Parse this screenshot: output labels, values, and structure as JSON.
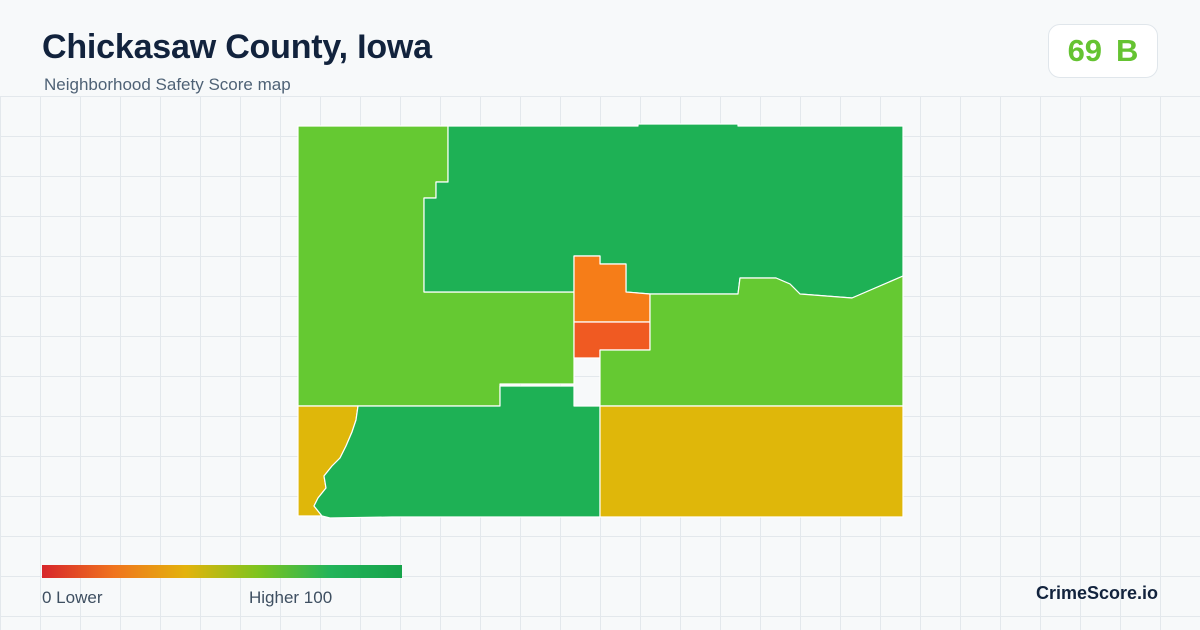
{
  "header": {
    "title": "Chickasaw County, Iowa",
    "subtitle": "Neighborhood Safety Score map"
  },
  "score_badge": {
    "score": "69",
    "grade": "B",
    "color": "#65c332"
  },
  "map": {
    "regions": [
      {
        "id": "northwest",
        "color": "#65c932"
      },
      {
        "id": "north",
        "color": "#1eb155"
      },
      {
        "id": "center-north-town",
        "color": "#f67d18"
      },
      {
        "id": "center-south-town",
        "color": "#f05a22"
      },
      {
        "id": "east-central",
        "color": "#65c932"
      },
      {
        "id": "southwest-strip",
        "color": "#dfb70a"
      },
      {
        "id": "southwest",
        "color": "#1eb155"
      },
      {
        "id": "southeast",
        "color": "#dfb70a"
      }
    ]
  },
  "legend": {
    "min_label": "0  Lower",
    "max_label": "Higher  100",
    "gradient_colors": [
      "#d7262b",
      "#f0741e",
      "#e3b30c",
      "#7ec41e",
      "#22b45a",
      "#16a34a"
    ]
  },
  "footer": {
    "brand": "CrimeScore.io"
  }
}
